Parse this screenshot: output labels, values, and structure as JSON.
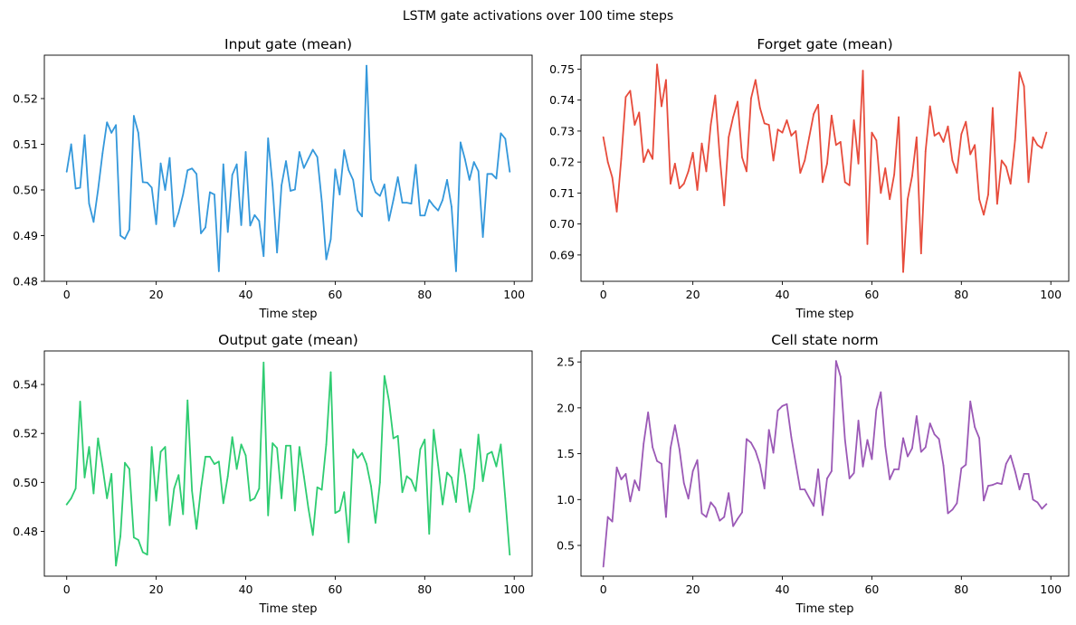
{
  "figure": {
    "suptitle": "LSTM gate activations over 100 time steps"
  },
  "chart_data": [
    {
      "type": "line",
      "title": "Input gate (mean)",
      "xlabel": "Time step",
      "ylabel": "",
      "color": "#3498db",
      "xlim": [
        -5,
        104
      ],
      "ylim": [
        0.48,
        0.5295
      ],
      "xticks": [
        0,
        20,
        40,
        60,
        80,
        100
      ],
      "yticks": [
        0.48,
        0.49,
        0.5,
        0.51,
        0.52
      ],
      "ytick_labels": [
        "0.48",
        "0.49",
        "0.50",
        "0.51",
        "0.52"
      ],
      "values": [
        0.504,
        0.51,
        0.5003,
        0.5005,
        0.512,
        0.497,
        0.493,
        0.5,
        0.508,
        0.5148,
        0.5125,
        0.5142,
        0.49,
        0.4893,
        0.4913,
        0.5162,
        0.5125,
        0.5017,
        0.5016,
        0.5005,
        0.4925,
        0.5058,
        0.5,
        0.507,
        0.492,
        0.495,
        0.499,
        0.5043,
        0.5047,
        0.5035,
        0.4905,
        0.4918,
        0.4995,
        0.499,
        0.4822,
        0.5056,
        0.4908,
        0.5033,
        0.5056,
        0.4923,
        0.5083,
        0.4922,
        0.4945,
        0.4932,
        0.4855,
        0.5113,
        0.501,
        0.4863,
        0.501,
        0.5063,
        0.4998,
        0.5001,
        0.5083,
        0.5048,
        0.5068,
        0.5088,
        0.5072,
        0.4975,
        0.4848,
        0.4892,
        0.5045,
        0.499,
        0.5087,
        0.5043,
        0.5022,
        0.4955,
        0.4942,
        0.5272,
        0.5023,
        0.4995,
        0.4987,
        0.5012,
        0.4933,
        0.4978,
        0.5028,
        0.4972,
        0.4972,
        0.497,
        0.5055,
        0.4944,
        0.4944,
        0.4978,
        0.4965,
        0.4955,
        0.4978,
        0.5022,
        0.4963,
        0.4822,
        0.5104,
        0.5067,
        0.5022,
        0.5061,
        0.5041,
        0.4897,
        0.5035,
        0.5035,
        0.5025,
        0.5124,
        0.5112,
        0.504
      ]
    },
    {
      "type": "line",
      "title": "Forget gate (mean)",
      "xlabel": "Time step",
      "ylabel": "",
      "color": "#e74c3c",
      "xlim": [
        -5,
        104
      ],
      "ylim": [
        0.6815,
        0.7545
      ],
      "xticks": [
        0,
        20,
        40,
        60,
        80,
        100
      ],
      "yticks": [
        0.69,
        0.7,
        0.71,
        0.72,
        0.73,
        0.74,
        0.75
      ],
      "ytick_labels": [
        "0.69",
        "0.70",
        "0.71",
        "0.72",
        "0.73",
        "0.74",
        "0.75"
      ],
      "values": [
        0.728,
        0.72,
        0.715,
        0.704,
        0.721,
        0.741,
        0.743,
        0.732,
        0.736,
        0.72,
        0.724,
        0.721,
        0.7515,
        0.738,
        0.7465,
        0.713,
        0.7195,
        0.7115,
        0.713,
        0.717,
        0.723,
        0.711,
        0.726,
        0.717,
        0.732,
        0.7415,
        0.722,
        0.706,
        0.728,
        0.7345,
        0.7395,
        0.7215,
        0.717,
        0.7405,
        0.7465,
        0.7375,
        0.7325,
        0.732,
        0.7205,
        0.7305,
        0.7295,
        0.7335,
        0.7285,
        0.73,
        0.7165,
        0.7205,
        0.728,
        0.7355,
        0.7385,
        0.7135,
        0.7195,
        0.735,
        0.7255,
        0.7265,
        0.7135,
        0.7125,
        0.7335,
        0.7195,
        0.7495,
        0.6935,
        0.7295,
        0.727,
        0.71,
        0.718,
        0.708,
        0.716,
        0.7345,
        0.6845,
        0.708,
        0.7155,
        0.728,
        0.6905,
        0.7235,
        0.738,
        0.7285,
        0.7295,
        0.7265,
        0.7315,
        0.7205,
        0.7165,
        0.729,
        0.733,
        0.7225,
        0.7255,
        0.708,
        0.703,
        0.7095,
        0.7375,
        0.7065,
        0.7205,
        0.7185,
        0.713,
        0.727,
        0.749,
        0.7445,
        0.7135,
        0.728,
        0.7255,
        0.7245,
        0.7295
      ]
    },
    {
      "type": "line",
      "title": "Output gate (mean)",
      "xlabel": "Time step",
      "ylabel": "",
      "color": "#2ecc71",
      "xlim": [
        -5,
        104
      ],
      "ylim": [
        0.4617,
        0.5537
      ],
      "xticks": [
        0,
        20,
        40,
        60,
        80,
        100
      ],
      "yticks": [
        0.48,
        0.5,
        0.52,
        0.54
      ],
      "ytick_labels": [
        "0.48",
        "0.50",
        "0.52",
        "0.54"
      ],
      "values": [
        0.491,
        0.4935,
        0.4975,
        0.533,
        0.502,
        0.5145,
        0.4955,
        0.518,
        0.5065,
        0.4935,
        0.5035,
        0.466,
        0.478,
        0.508,
        0.5055,
        0.4775,
        0.4765,
        0.4715,
        0.4705,
        0.5145,
        0.4925,
        0.5125,
        0.5145,
        0.4825,
        0.4975,
        0.503,
        0.487,
        0.5335,
        0.4965,
        0.481,
        0.4975,
        0.5105,
        0.5105,
        0.5075,
        0.5085,
        0.4915,
        0.5025,
        0.5185,
        0.5055,
        0.5155,
        0.511,
        0.4925,
        0.4935,
        0.4975,
        0.549,
        0.4865,
        0.516,
        0.514,
        0.4935,
        0.515,
        0.515,
        0.4885,
        0.5145,
        0.5025,
        0.4895,
        0.4785,
        0.498,
        0.497,
        0.5155,
        0.545,
        0.4875,
        0.4885,
        0.496,
        0.4755,
        0.5135,
        0.51,
        0.512,
        0.5075,
        0.4985,
        0.4835,
        0.5,
        0.5435,
        0.5335,
        0.518,
        0.519,
        0.496,
        0.5025,
        0.501,
        0.4965,
        0.5135,
        0.5175,
        0.479,
        0.5215,
        0.507,
        0.491,
        0.504,
        0.502,
        0.492,
        0.5135,
        0.503,
        0.488,
        0.4975,
        0.5195,
        0.5005,
        0.5115,
        0.5125,
        0.5065,
        0.5155,
        0.4935,
        0.4705
      ]
    },
    {
      "type": "line",
      "title": "Cell state norm",
      "xlabel": "Time step",
      "ylabel": "",
      "color": "#9b59b6",
      "xlim": [
        -5,
        104
      ],
      "ylim": [
        0.165,
        2.62
      ],
      "xticks": [
        0,
        20,
        40,
        60,
        80,
        100
      ],
      "yticks": [
        0.5,
        1.0,
        1.5,
        2.0,
        2.5
      ],
      "ytick_labels": [
        "0.5",
        "1.0",
        "1.5",
        "2.0",
        "2.5"
      ],
      "values": [
        0.27,
        0.81,
        0.76,
        1.35,
        1.22,
        1.28,
        0.98,
        1.21,
        1.1,
        1.61,
        1.95,
        1.57,
        1.42,
        1.39,
        0.81,
        1.56,
        1.81,
        1.55,
        1.18,
        1.01,
        1.31,
        1.43,
        0.85,
        0.81,
        0.97,
        0.91,
        0.77,
        0.81,
        1.07,
        0.71,
        0.79,
        0.86,
        1.66,
        1.62,
        1.53,
        1.38,
        1.12,
        1.76,
        1.51,
        1.97,
        2.02,
        2.04,
        1.68,
        1.39,
        1.11,
        1.11,
        1.02,
        0.93,
        1.33,
        0.83,
        1.23,
        1.31,
        2.51,
        2.34,
        1.65,
        1.23,
        1.29,
        1.86,
        1.36,
        1.65,
        1.44,
        1.98,
        2.17,
        1.58,
        1.22,
        1.33,
        1.33,
        1.67,
        1.47,
        1.56,
        1.91,
        1.52,
        1.57,
        1.83,
        1.71,
        1.66,
        1.37,
        0.85,
        0.89,
        0.96,
        1.34,
        1.38,
        2.07,
        1.79,
        1.67,
        0.99,
        1.15,
        1.16,
        1.18,
        1.17,
        1.39,
        1.48,
        1.31,
        1.11,
        1.28,
        1.28,
        1.0,
        0.97,
        0.9,
        0.95
      ]
    }
  ]
}
